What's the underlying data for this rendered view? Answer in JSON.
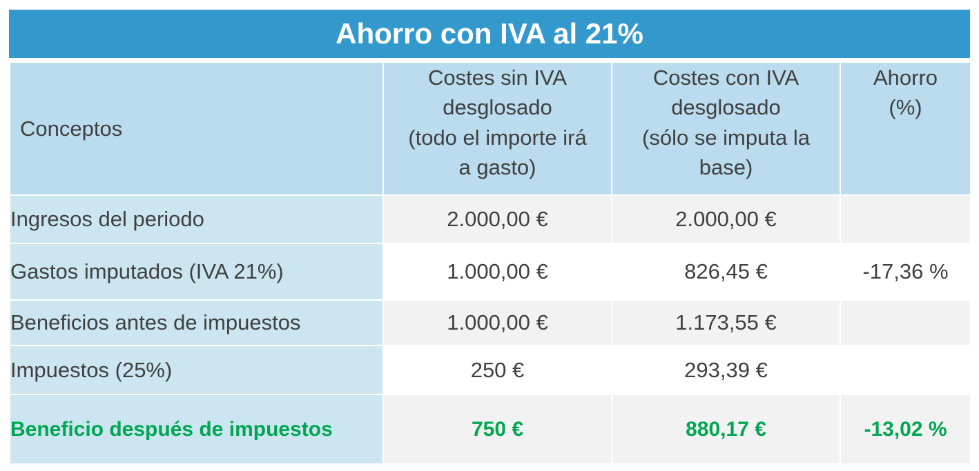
{
  "title": "Ahorro con IVA al 21%",
  "headers": {
    "concepts": "Conceptos",
    "col_without_vat": [
      "Costes sin IVA",
      "desglosado",
      "(todo el importe irá",
      "a gasto)"
    ],
    "col_with_vat": [
      "Costes con IVA",
      "desglosado",
      "(sólo se imputa la",
      "base)"
    ],
    "col_savings": [
      "Ahorro",
      "(%)"
    ]
  },
  "rows": [
    {
      "concept": "Ingresos del periodo",
      "without_vat": "2.000,00 €",
      "with_vat": "2.000,00 €",
      "savings": ""
    },
    {
      "concept": "Gastos imputados (IVA  21%)",
      "without_vat": "1.000,00 €",
      "with_vat": "826,45 €",
      "savings": "-17,36 %"
    },
    {
      "concept": "Beneficios antes de impuestos",
      "without_vat": "1.000,00 €",
      "with_vat": "1.173,55 €",
      "savings": ""
    },
    {
      "concept": "Impuestos (25%)",
      "without_vat": "250 €",
      "with_vat": "293,39 €",
      "savings": ""
    },
    {
      "concept": "Beneficio después de impuestos",
      "without_vat": "750 €",
      "with_vat": "880,17 €",
      "savings": "-13,02 %"
    }
  ],
  "colors": {
    "title_background": "#3399CC",
    "header_background": "#BADCEE",
    "concept_background": "#CCE6F1",
    "highlight_text": "#00A651"
  }
}
